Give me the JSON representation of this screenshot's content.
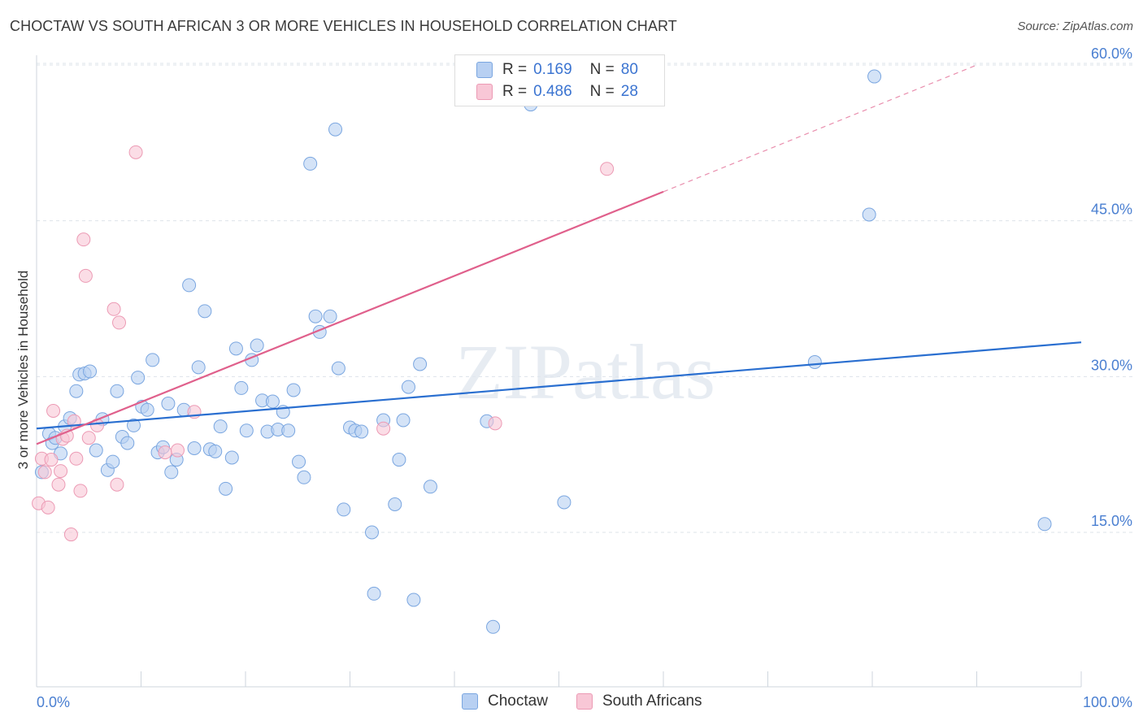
{
  "header": {
    "title": "CHOCTAW VS SOUTH AFRICAN 3 OR MORE VEHICLES IN HOUSEHOLD CORRELATION CHART",
    "source": "Source: ZipAtlas.com"
  },
  "watermark": "ZIPatlas",
  "legend": {
    "r_label": "R =",
    "n_label": "N =",
    "rows": [
      {
        "name": "Choctaw",
        "r": "0.169",
        "n": "80"
      },
      {
        "name": "South Africans",
        "r": "0.486",
        "n": "28"
      }
    ]
  },
  "colors": {
    "choctaw_fill": "#b8d0f2",
    "choctaw_stroke": "#7aa6e0",
    "choctaw_line": "#2a6fd0",
    "sa_fill": "#f8c7d6",
    "sa_stroke": "#ec9ab4",
    "sa_line": "#e0608c",
    "tick_text": "#4a7fd1",
    "grid": "#dde3ea"
  },
  "chart_data": {
    "type": "scatter",
    "title": "CHOCTAW VS SOUTH AFRICAN 3 OR MORE VEHICLES IN HOUSEHOLD CORRELATION CHART",
    "xlabel": "",
    "ylabel": "3 or more Vehicles in Household",
    "xlim": [
      0,
      100
    ],
    "ylim": [
      0,
      62
    ],
    "x_tick_labels": [
      "0.0%",
      "100.0%"
    ],
    "y_ticks": [
      15,
      30,
      45,
      60
    ],
    "y_tick_labels": [
      "15.0%",
      "30.0%",
      "45.0%",
      "60.0%"
    ],
    "grid": true,
    "series": [
      {
        "name": "Choctaw",
        "trend": {
          "x": [
            0,
            100
          ],
          "y": [
            25.0,
            33.3
          ],
          "style": "solid"
        },
        "points": [
          [
            0.5,
            20.8
          ],
          [
            1.2,
            24.5
          ],
          [
            1.5,
            23.6
          ],
          [
            1.8,
            24.1
          ],
          [
            2.3,
            22.6
          ],
          [
            2.7,
            25.2
          ],
          [
            3.2,
            26.0
          ],
          [
            3.8,
            28.6
          ],
          [
            4.1,
            30.2
          ],
          [
            4.6,
            30.3
          ],
          [
            5.1,
            30.5
          ],
          [
            5.7,
            22.9
          ],
          [
            6.3,
            25.9
          ],
          [
            6.8,
            21.0
          ],
          [
            7.3,
            21.8
          ],
          [
            7.7,
            28.6
          ],
          [
            8.2,
            24.2
          ],
          [
            8.7,
            23.6
          ],
          [
            9.3,
            25.3
          ],
          [
            9.7,
            29.9
          ],
          [
            10.1,
            27.1
          ],
          [
            10.6,
            26.8
          ],
          [
            11.1,
            31.6
          ],
          [
            11.6,
            22.7
          ],
          [
            12.1,
            23.2
          ],
          [
            12.6,
            27.4
          ],
          [
            12.9,
            20.8
          ],
          [
            13.4,
            22.0
          ],
          [
            14.1,
            26.8
          ],
          [
            14.6,
            38.8
          ],
          [
            15.1,
            23.1
          ],
          [
            15.5,
            30.9
          ],
          [
            16.1,
            36.3
          ],
          [
            16.6,
            23.0
          ],
          [
            17.1,
            22.8
          ],
          [
            17.6,
            25.2
          ],
          [
            18.1,
            19.2
          ],
          [
            18.7,
            22.2
          ],
          [
            19.1,
            32.7
          ],
          [
            19.6,
            28.9
          ],
          [
            20.1,
            24.8
          ],
          [
            20.6,
            31.6
          ],
          [
            21.1,
            33.0
          ],
          [
            21.6,
            27.7
          ],
          [
            22.1,
            24.7
          ],
          [
            22.6,
            27.6
          ],
          [
            23.1,
            24.9
          ],
          [
            23.6,
            26.6
          ],
          [
            24.1,
            24.8
          ],
          [
            24.6,
            28.7
          ],
          [
            25.1,
            21.8
          ],
          [
            25.6,
            20.3
          ],
          [
            26.2,
            50.5
          ],
          [
            26.7,
            35.8
          ],
          [
            27.1,
            34.3
          ],
          [
            28.1,
            35.8
          ],
          [
            28.6,
            53.8
          ],
          [
            28.9,
            30.8
          ],
          [
            29.4,
            17.2
          ],
          [
            30.0,
            25.1
          ],
          [
            30.5,
            24.8
          ],
          [
            31.1,
            24.7
          ],
          [
            32.1,
            15.0
          ],
          [
            33.2,
            25.8
          ],
          [
            34.3,
            17.7
          ],
          [
            35.1,
            25.8
          ],
          [
            35.6,
            29.0
          ],
          [
            36.7,
            31.2
          ],
          [
            37.7,
            19.4
          ],
          [
            43.7,
            5.9
          ],
          [
            36.1,
            8.5
          ],
          [
            32.3,
            9.1
          ],
          [
            34.7,
            22.0
          ],
          [
            43.1,
            25.7
          ],
          [
            47.3,
            56.2
          ],
          [
            50.5,
            17.9
          ],
          [
            74.5,
            31.4
          ],
          [
            79.7,
            45.6
          ],
          [
            80.2,
            58.9
          ],
          [
            96.5,
            15.8
          ]
        ]
      },
      {
        "name": "South Africans",
        "trend": {
          "x": [
            0,
            60,
            90
          ],
          "y": [
            23.5,
            47.8,
            60.0
          ],
          "style": "solid-then-dashed"
        },
        "points": [
          [
            0.2,
            17.8
          ],
          [
            0.5,
            22.1
          ],
          [
            0.8,
            20.8
          ],
          [
            1.1,
            17.4
          ],
          [
            1.4,
            22.0
          ],
          [
            1.6,
            26.7
          ],
          [
            2.1,
            19.6
          ],
          [
            2.3,
            20.9
          ],
          [
            2.5,
            24.0
          ],
          [
            2.9,
            24.3
          ],
          [
            3.3,
            14.8
          ],
          [
            3.6,
            25.7
          ],
          [
            3.8,
            22.1
          ],
          [
            4.2,
            19.0
          ],
          [
            4.5,
            43.2
          ],
          [
            4.7,
            39.7
          ],
          [
            5.0,
            24.1
          ],
          [
            5.8,
            25.3
          ],
          [
            7.4,
            36.5
          ],
          [
            7.7,
            19.6
          ],
          [
            7.9,
            35.2
          ],
          [
            9.5,
            51.6
          ],
          [
            12.3,
            22.7
          ],
          [
            13.5,
            22.9
          ],
          [
            15.1,
            26.6
          ],
          [
            33.2,
            25.0
          ],
          [
            43.9,
            25.5
          ],
          [
            54.6,
            50.0
          ]
        ]
      }
    ]
  }
}
